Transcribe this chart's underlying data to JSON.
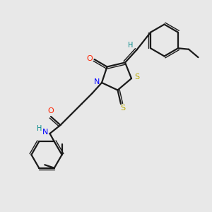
{
  "bg_color": "#e8e8e8",
  "bond_color": "#1a1a1a",
  "N_color": "#0000ff",
  "O_color": "#ff2200",
  "S_color": "#bbaa00",
  "H_color": "#008888",
  "figsize": [
    3.0,
    3.0
  ],
  "dpi": 100,
  "xlim": [
    0,
    10
  ],
  "ylim": [
    0,
    10
  ]
}
